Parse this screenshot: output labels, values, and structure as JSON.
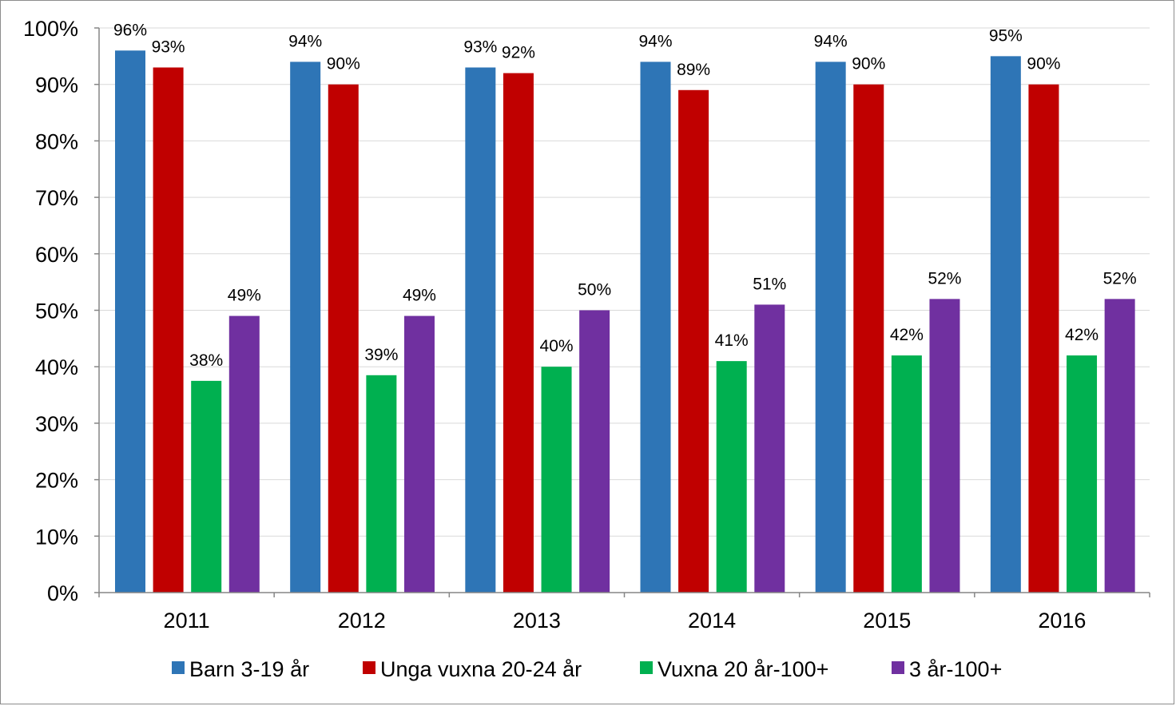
{
  "chart_data": {
    "type": "bar",
    "title": "",
    "xlabel": "",
    "ylabel": "",
    "categories": [
      "2011",
      "2012",
      "2013",
      "2014",
      "2015",
      "2016"
    ],
    "ylim": [
      0,
      100
    ],
    "yticks": [
      0,
      10,
      20,
      30,
      40,
      50,
      60,
      70,
      80,
      90,
      100
    ],
    "ytick_labels": [
      "0%",
      "10%",
      "20%",
      "30%",
      "40%",
      "50%",
      "60%",
      "70%",
      "80%",
      "90%",
      "100%"
    ],
    "grid": true,
    "legend_position": "bottom",
    "series": [
      {
        "name": "Barn 3-19 år",
        "color": "#2E75B6",
        "values": [
          96,
          94,
          93,
          94,
          94,
          95
        ],
        "labels": [
          "96%",
          "94%",
          "93%",
          "94%",
          "94%",
          "95%"
        ]
      },
      {
        "name": "Unga vuxna 20-24 år",
        "color": "#C00000",
        "values": [
          93,
          90,
          92,
          89,
          90,
          90
        ],
        "labels": [
          "93%",
          "90%",
          "92%",
          "89%",
          "90%",
          "90%"
        ]
      },
      {
        "name": "Vuxna 20 år-100+",
        "color": "#00B050",
        "values": [
          37.5,
          38.5,
          40,
          41,
          42,
          42
        ],
        "labels": [
          "38%",
          "39%",
          "40%",
          "41%",
          "42%",
          "42%"
        ]
      },
      {
        "name": "3 år-100+",
        "color": "#7030A0",
        "values": [
          49,
          49,
          50,
          51,
          52,
          52
        ],
        "labels": [
          "49%",
          "49%",
          "50%",
          "51%",
          "52%",
          "52%"
        ]
      }
    ]
  }
}
